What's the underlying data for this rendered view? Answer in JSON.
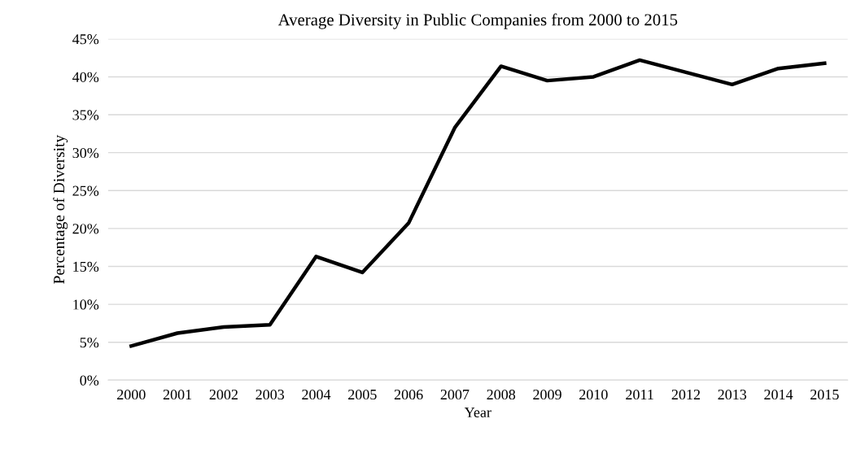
{
  "chart_data": {
    "type": "line",
    "title": "Average Diversity in Public Companies from 2000 to 2015",
    "xlabel": "Year",
    "ylabel": "Percentage of Diversity",
    "categories": [
      "2000",
      "2001",
      "2002",
      "2003",
      "2004",
      "2005",
      "2006",
      "2007",
      "2008",
      "2009",
      "2010",
      "2011",
      "2012",
      "2013",
      "2014",
      "2015"
    ],
    "series": [
      {
        "color": "#000000",
        "values": [
          4.5,
          6.2,
          7.0,
          7.3,
          16.3,
          14.2,
          20.7,
          33.3,
          41.4,
          39.5,
          40.0,
          42.2,
          40.6,
          39.0,
          41.1,
          41.8
        ]
      }
    ],
    "ylim": [
      0,
      45
    ],
    "yticks": [
      {
        "value": 0,
        "label": "0%"
      },
      {
        "value": 5,
        "label": "5%"
      },
      {
        "value": 10,
        "label": "10%"
      },
      {
        "value": 15,
        "label": "15%"
      },
      {
        "value": 20,
        "label": "20%"
      },
      {
        "value": 25,
        "label": "25%"
      },
      {
        "value": 30,
        "label": "30%"
      },
      {
        "value": 35,
        "label": "35%"
      },
      {
        "value": 40,
        "label": "40%"
      },
      {
        "value": 45,
        "label": "45%"
      }
    ],
    "grid": "y",
    "legend": false,
    "marker": "none",
    "line_style": "solid"
  }
}
